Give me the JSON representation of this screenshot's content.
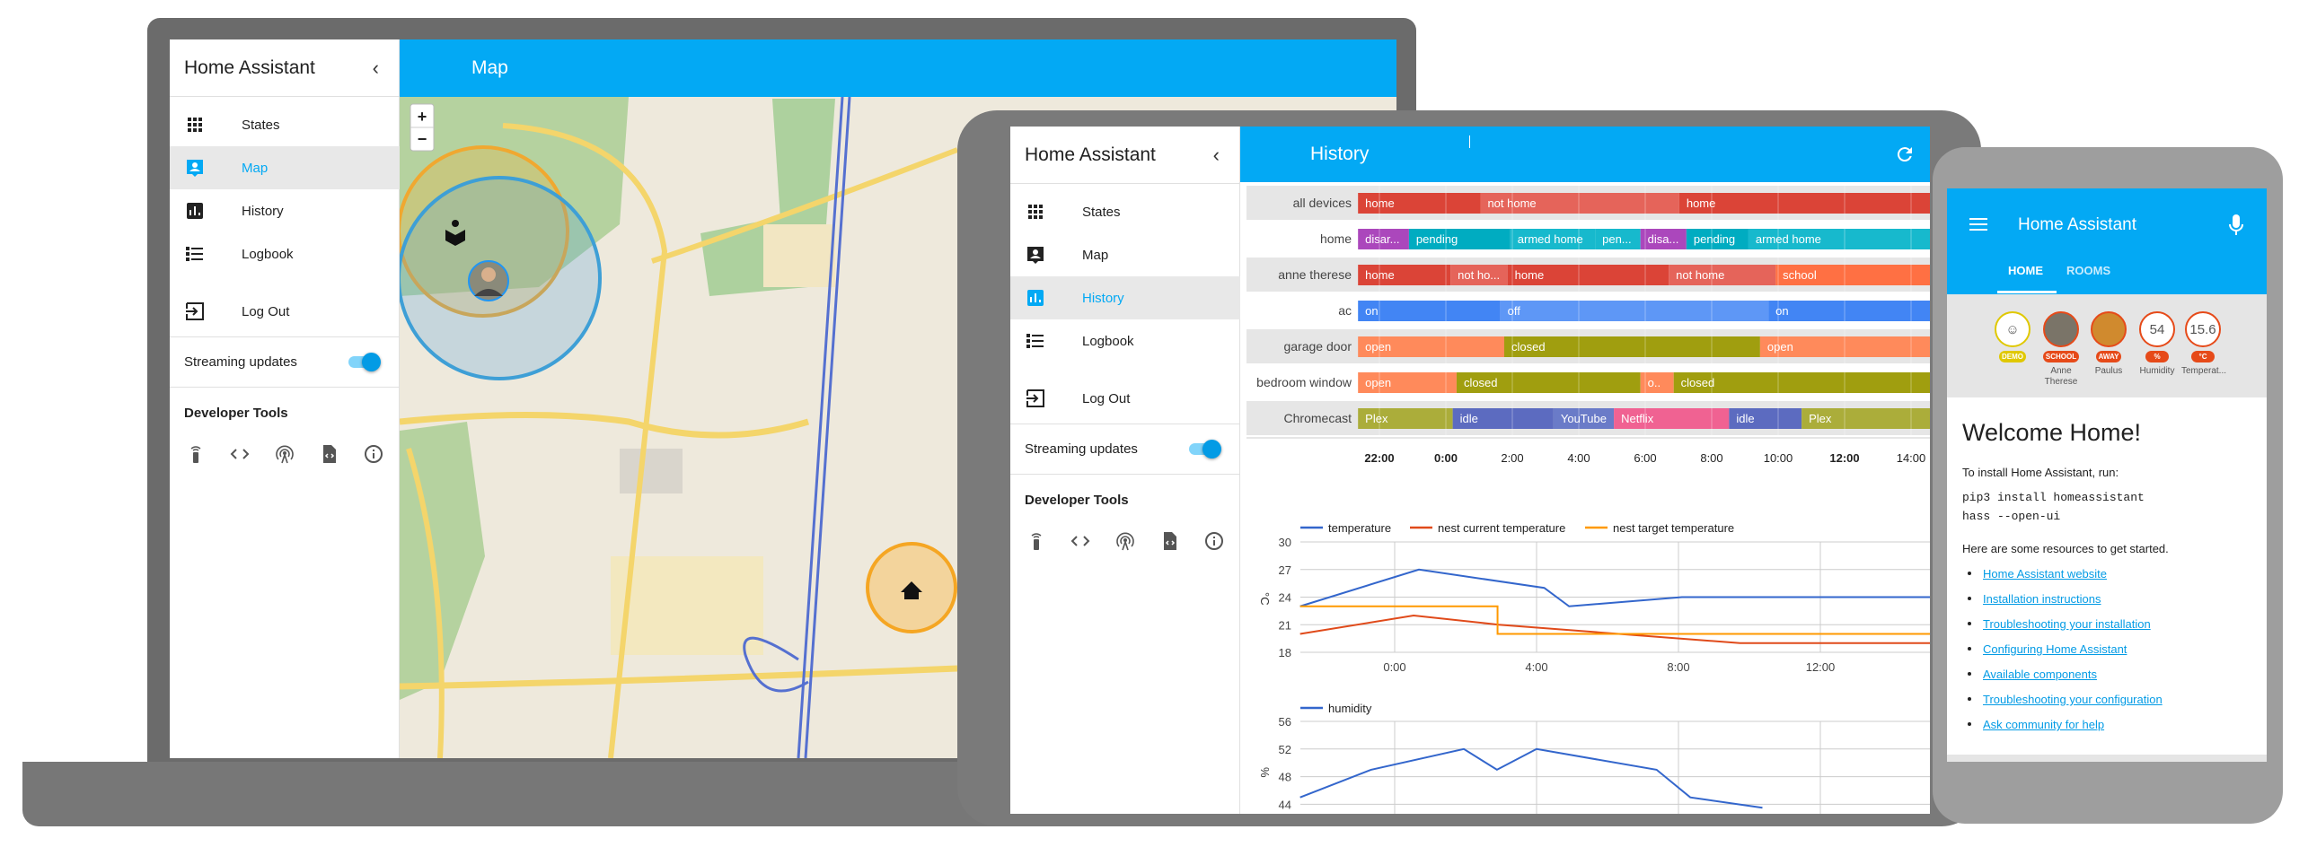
{
  "app_title": "Home Assistant",
  "sidebar": {
    "items": [
      {
        "label": "States",
        "icon": "grid-icon"
      },
      {
        "label": "Map",
        "icon": "account-box-icon"
      },
      {
        "label": "History",
        "icon": "chart-bar-icon"
      },
      {
        "label": "Logbook",
        "icon": "list-icon"
      }
    ],
    "logout": "Log Out",
    "streaming": "Streaming updates",
    "streaming_on": true,
    "dev_tools": "Developer Tools",
    "dev_icons": [
      "remote-icon",
      "code-icon",
      "broadcast-icon",
      "file-code-icon",
      "info-icon"
    ]
  },
  "laptop": {
    "header_title": "Map",
    "selected": "Map",
    "zoom_in": "+",
    "zoom_out": "−"
  },
  "tablet": {
    "header_title": "History",
    "selected": "History"
  },
  "colors": {
    "accent": "#03a9f4"
  },
  "history_timeline": {
    "start": "21:23",
    "end": "14:34",
    "ticks": [
      {
        "label": "22:00",
        "bold": true
      },
      {
        "label": "0:00",
        "bold": true
      },
      {
        "label": "2:00"
      },
      {
        "label": "4:00"
      },
      {
        "label": "6:00"
      },
      {
        "label": "8:00"
      },
      {
        "label": "10:00"
      },
      {
        "label": "12:00",
        "bold": true
      },
      {
        "label": "14:00"
      }
    ],
    "rows": [
      {
        "entity": "all devices",
        "segments": [
          {
            "state": "home",
            "start": "21:23",
            "color": "#db4437"
          },
          {
            "state": "not home",
            "start": "01:04",
            "color": "#e5645a"
          },
          {
            "state": "home",
            "start": "07:03",
            "color": "#db4437"
          }
        ]
      },
      {
        "entity": "home",
        "segments": [
          {
            "state": "disar...",
            "start": "21:23",
            "color": "#ab47bc"
          },
          {
            "state": "pending",
            "start": "22:55",
            "color": "#00acc1"
          },
          {
            "state": "armed home",
            "start": "01:58",
            "color": "#17b9cd"
          },
          {
            "state": "pen...",
            "start": "04:31",
            "color": "#17b9cd"
          },
          {
            "state": "disa...",
            "start": "05:53",
            "color": "#ab47bc"
          },
          {
            "state": "pending",
            "start": "07:16",
            "color": "#00acc1"
          },
          {
            "state": "armed home",
            "start": "09:08",
            "color": "#17b9cd"
          }
        ]
      },
      {
        "entity": "anne therese",
        "segments": [
          {
            "state": "home",
            "start": "21:23",
            "color": "#db4437"
          },
          {
            "state": "not ho...",
            "start": "00:10",
            "color": "#e5645a"
          },
          {
            "state": "home",
            "start": "01:53",
            "color": "#db4437"
          },
          {
            "state": "not home",
            "start": "06:44",
            "color": "#e5645a"
          },
          {
            "state": "school",
            "start": "09:57",
            "color": "#ff7043"
          }
        ]
      },
      {
        "entity": "ac",
        "segments": [
          {
            "state": "on",
            "start": "21:23",
            "color": "#4285f4"
          },
          {
            "state": "off",
            "start": "01:40",
            "color": "#5e97f6"
          },
          {
            "state": "on",
            "start": "09:44",
            "color": "#4285f4"
          }
        ]
      },
      {
        "entity": "garage door",
        "segments": [
          {
            "state": "open",
            "start": "21:23",
            "color": "#ff8a5b"
          },
          {
            "state": "closed",
            "start": "01:47",
            "color": "#a09e0f"
          },
          {
            "state": "open",
            "start": "09:29",
            "color": "#ff8a5b"
          }
        ]
      },
      {
        "entity": "bedroom window",
        "segments": [
          {
            "state": "open",
            "start": "21:23",
            "color": "#ff8a5b"
          },
          {
            "state": "closed",
            "start": "00:21",
            "color": "#a09e0f"
          },
          {
            "state": "o..",
            "start": "05:53",
            "color": "#ff8a5b"
          },
          {
            "state": "closed",
            "start": "06:53",
            "color": "#a09e0f"
          }
        ]
      },
      {
        "entity": "Chromecast",
        "segments": [
          {
            "state": "Plex",
            "start": "21:23",
            "color": "#abad3a"
          },
          {
            "state": "idle",
            "start": "00:14",
            "color": "#5c6bc0"
          },
          {
            "state": "YouTube",
            "start": "03:16",
            "color": "#6a7bc8"
          },
          {
            "state": "Netflix",
            "start": "05:05",
            "color": "#f06292"
          },
          {
            "state": "idle",
            "start": "08:33",
            "color": "#5c6bc0"
          },
          {
            "state": "Plex",
            "start": "10:44",
            "color": "#abad3a"
          }
        ]
      }
    ]
  },
  "chart_data": [
    {
      "type": "line",
      "ylabel": "°C",
      "ylim": [
        18,
        30
      ],
      "yticks": [
        "30",
        "27",
        "24",
        "21",
        "18"
      ],
      "xticks": [
        "0:00",
        "4:00",
        "8:00",
        "12:00"
      ],
      "grid": true,
      "legend": "top-left",
      "series": [
        {
          "name": "temperature",
          "color": "#3366cc",
          "points": [
            [
              "21:20",
              23
            ],
            [
              "00:41",
              27
            ],
            [
              "04:13",
              25
            ],
            [
              "04:55",
              23
            ],
            [
              "08:06",
              24
            ],
            [
              "15:06",
              24
            ]
          ]
        },
        {
          "name": "nest current temperature",
          "color": "#e04a1a",
          "points": [
            [
              "21:20",
              20
            ],
            [
              "00:32",
              22
            ],
            [
              "02:56",
              21
            ],
            [
              "09:44",
              19
            ],
            [
              "15:06",
              19
            ]
          ]
        },
        {
          "name": "nest target temperature",
          "color": "#ff9900",
          "step": true,
          "points": [
            [
              "21:20",
              23
            ],
            [
              "02:54",
              23
            ],
            [
              "02:54",
              20
            ],
            [
              "15:06",
              20
            ]
          ]
        }
      ]
    },
    {
      "type": "line",
      "ylabel": "%",
      "ylim": [
        44,
        56
      ],
      "yticks": [
        "56",
        "52",
        "48",
        "44"
      ],
      "grid": true,
      "legend": "top-left",
      "series": [
        {
          "name": "humidity",
          "color": "#3366cc",
          "points": [
            [
              "21:20",
              45
            ],
            [
              "23:20",
              49
            ],
            [
              "01:57",
              52
            ],
            [
              "02:53",
              49
            ],
            [
              "04:00",
              52
            ],
            [
              "07:23",
              49
            ],
            [
              "08:20",
              45
            ],
            [
              "10:22",
              43.5
            ]
          ]
        }
      ]
    }
  ],
  "phone": {
    "title": "Home Assistant",
    "tabs": [
      "HOME",
      "ROOMS"
    ],
    "active_tab": "HOME",
    "badges": [
      {
        "value": "☺",
        "tag": "DEMO",
        "name": "",
        "color": "#e0c800"
      },
      {
        "value": "",
        "tag": "SCHOOL",
        "name": "Anne Therese",
        "color": "#e64a19"
      },
      {
        "value": "",
        "tag": "AWAY",
        "name": "Paulus",
        "color": "#e64a19"
      },
      {
        "value": "54",
        "tag": "%",
        "name": "Humidity",
        "color": "#e64a19"
      },
      {
        "value": "15.6",
        "tag": "°C",
        "name": "Temperat...",
        "color": "#e64a19"
      }
    ],
    "card": {
      "title": "Welcome Home!",
      "install_text": "To install Home Assistant, run:",
      "code_lines": [
        "pip3 install homeassistant",
        "hass --open-ui"
      ],
      "resources_text": "Here are some resources to get started.",
      "links": [
        "Home Assistant website",
        "Installation instructions",
        "Troubleshooting your installation",
        "Configuring Home Assistant",
        "Available components",
        "Troubleshooting your configuration",
        "Ask community for help"
      ]
    }
  }
}
